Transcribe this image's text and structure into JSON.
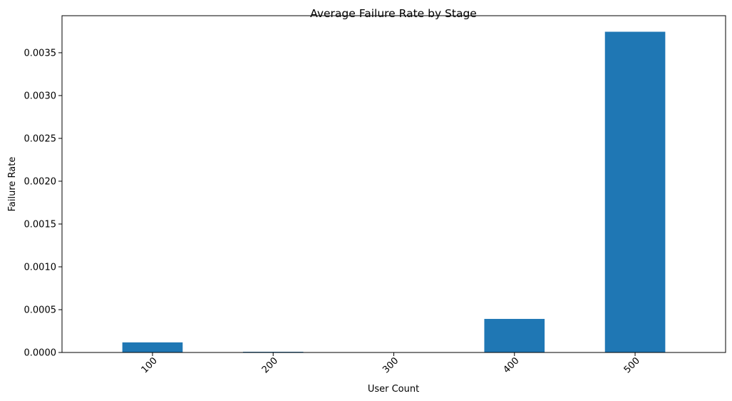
{
  "chart_data": {
    "type": "bar",
    "title": "Average Failure Rate by Stage",
    "xlabel": "User Count",
    "ylabel": "Failure Rate",
    "categories": [
      "100",
      "200",
      "300",
      "400",
      "500"
    ],
    "values": [
      0.000118,
      8e-06,
      0.0,
      0.000392,
      0.003745
    ],
    "yticks": [
      0.0,
      0.0005,
      0.001,
      0.0015,
      0.002,
      0.0025,
      0.003,
      0.0035
    ],
    "ytick_labels": [
      "0.0000",
      "0.0005",
      "0.0010",
      "0.0015",
      "0.0020",
      "0.0025",
      "0.0030",
      "0.0035"
    ],
    "ylim": [
      0,
      0.0039325
    ],
    "bar_color": "#1f77b4",
    "grid": false,
    "legend": "none",
    "xtick_rotation": 45
  }
}
